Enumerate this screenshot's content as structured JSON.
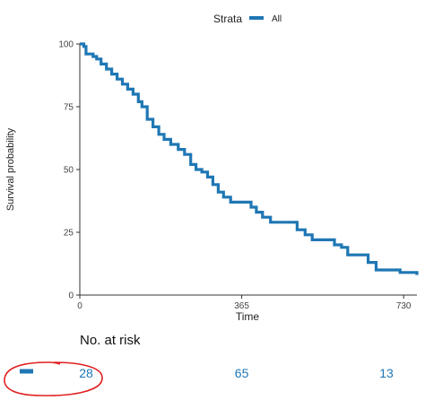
{
  "chart_data": {
    "type": "line",
    "step": true,
    "ylabel": "Survival probability",
    "xlabel": "Time",
    "xlim": [
      0,
      760
    ],
    "ylim": [
      0,
      100
    ],
    "x_ticks": [
      0,
      365,
      730
    ],
    "y_ticks": [
      0,
      25,
      50,
      75,
      100
    ],
    "legend": {
      "title": "Strata",
      "placement": "top",
      "entries": [
        {
          "label": "All",
          "color": "#1F77B4"
        }
      ]
    },
    "series": [
      {
        "name": "All",
        "color": "#1F77B4",
        "points": [
          [
            0,
            100
          ],
          [
            9,
            99
          ],
          [
            14,
            96
          ],
          [
            30,
            95
          ],
          [
            38,
            94
          ],
          [
            48,
            92
          ],
          [
            60,
            90
          ],
          [
            72,
            88
          ],
          [
            84,
            86
          ],
          [
            96,
            84
          ],
          [
            108,
            82
          ],
          [
            120,
            80
          ],
          [
            132,
            77
          ],
          [
            140,
            75
          ],
          [
            152,
            70
          ],
          [
            165,
            67
          ],
          [
            178,
            64
          ],
          [
            190,
            62
          ],
          [
            205,
            60
          ],
          [
            222,
            58
          ],
          [
            236,
            56
          ],
          [
            250,
            52
          ],
          [
            262,
            50
          ],
          [
            275,
            49
          ],
          [
            288,
            47
          ],
          [
            300,
            44
          ],
          [
            312,
            41
          ],
          [
            324,
            39
          ],
          [
            340,
            37
          ],
          [
            372,
            37
          ],
          [
            386,
            35
          ],
          [
            398,
            33
          ],
          [
            412,
            31
          ],
          [
            430,
            29
          ],
          [
            476,
            29
          ],
          [
            490,
            26
          ],
          [
            508,
            24
          ],
          [
            524,
            22
          ],
          [
            556,
            22
          ],
          [
            574,
            20
          ],
          [
            590,
            19
          ],
          [
            604,
            16
          ],
          [
            636,
            16
          ],
          [
            650,
            13
          ],
          [
            668,
            10
          ],
          [
            700,
            10
          ],
          [
            722,
            9
          ],
          [
            752,
            9
          ],
          [
            760,
            8
          ]
        ]
      }
    ]
  },
  "risk_table": {
    "title": "No. at risk",
    "values": [
      "28",
      "65",
      "13"
    ]
  },
  "annotation": {
    "type": "hand-drawn-ellipse",
    "color": "#E02020"
  }
}
